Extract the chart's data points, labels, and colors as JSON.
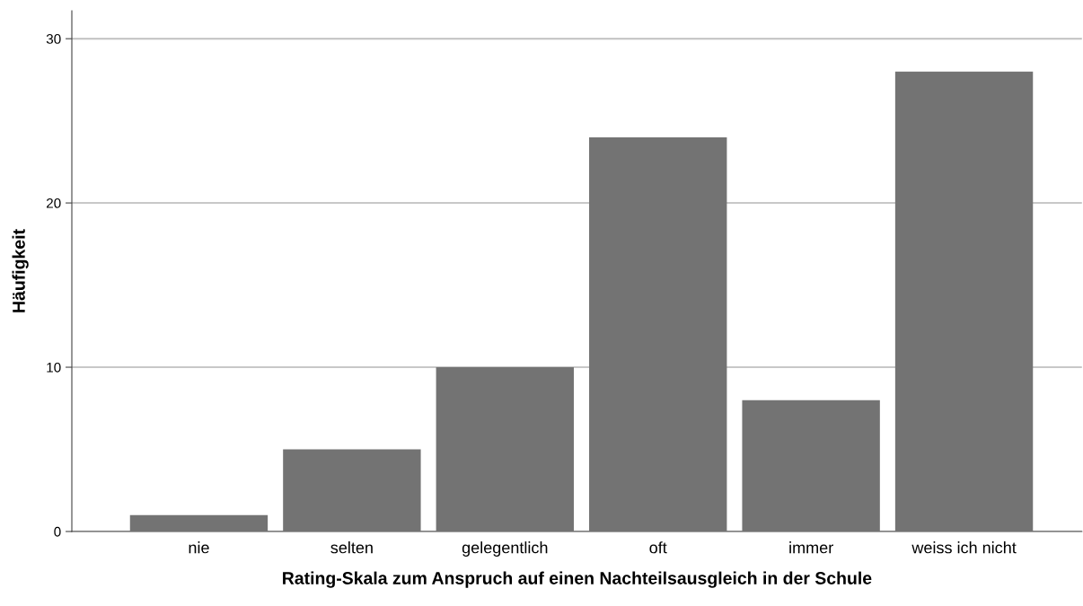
{
  "chart_data": {
    "type": "bar",
    "xlabel": "Rating-Skala zum Anspruch auf einen Nachteilsausgleich in der Schule",
    "ylabel": "Häufigkeit",
    "categories": [
      "nie",
      "selten",
      "gelegentlich",
      "oft",
      "immer",
      "weiss ich nicht"
    ],
    "values": [
      1,
      5,
      10,
      24,
      8,
      28
    ],
    "color": "#737373",
    "ylim": [
      0,
      31.7
    ],
    "yticks": [
      0,
      10,
      20,
      30
    ],
    "grid": "y",
    "legend": false
  }
}
